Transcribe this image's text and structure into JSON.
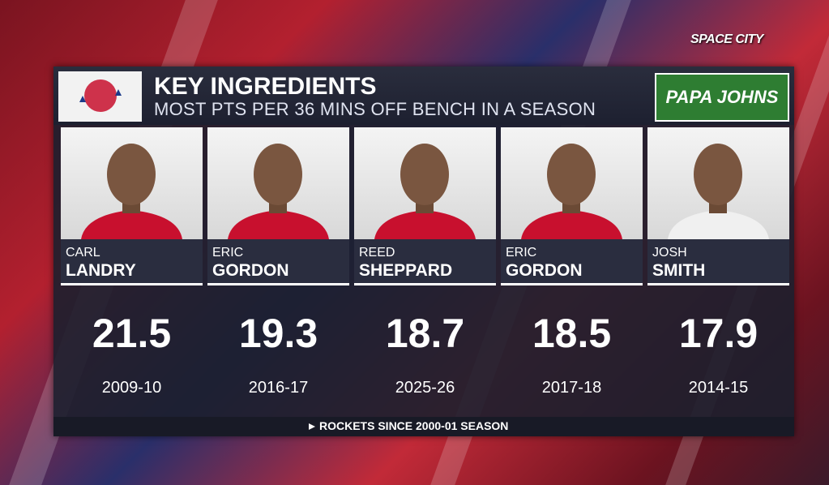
{
  "watermark": "SPACE CITY",
  "header": {
    "title": "KEY INGREDIENTS",
    "subtitle": "MOST PTS PER 36 MINS OFF BENCH IN A SEASON",
    "sponsor": "PAPA JOHNS"
  },
  "players": [
    {
      "first": "CARL",
      "last": "LANDRY",
      "value": "21.5",
      "season": "2009-10"
    },
    {
      "first": "ERIC",
      "last": "GORDON",
      "value": "19.3",
      "season": "2016-17"
    },
    {
      "first": "REED",
      "last": "SHEPPARD",
      "value": "18.7",
      "season": "2025-26"
    },
    {
      "first": "ERIC",
      "last": "GORDON",
      "value": "18.5",
      "season": "2017-18"
    },
    {
      "first": "JOSH",
      "last": "SMITH",
      "value": "17.9",
      "season": "2014-15"
    }
  ],
  "footnote": "ROCKETS SINCE 2000-01 SEASON"
}
